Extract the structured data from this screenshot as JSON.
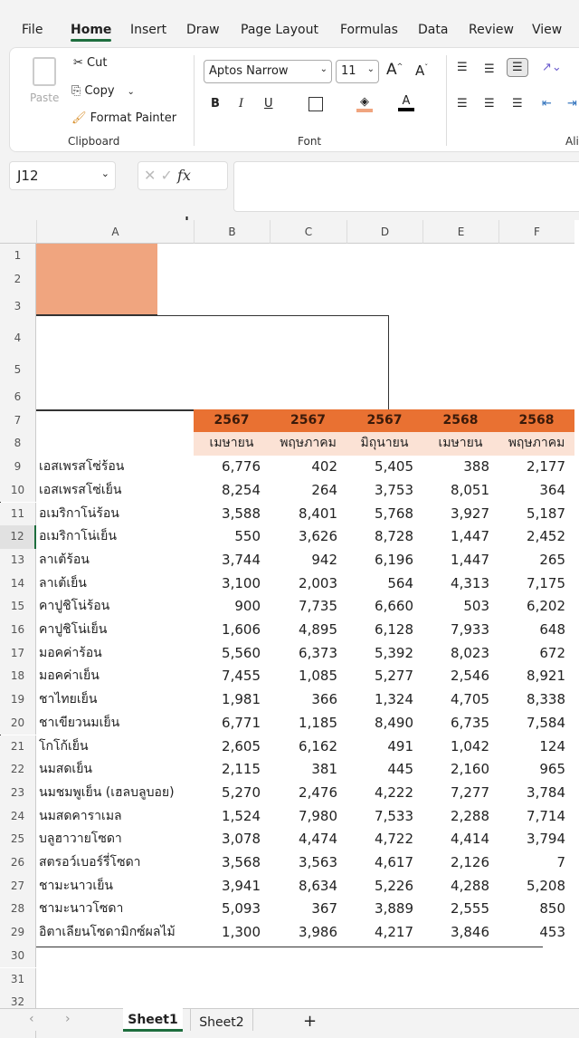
{
  "menu": [
    "File",
    "Home",
    "Insert",
    "Draw",
    "Page Layout",
    "Formulas",
    "Data",
    "Review",
    "View"
  ],
  "ribbon": {
    "paste": "Paste",
    "cut": "Cut",
    "copy": "Copy",
    "format_painter": "Format Painter",
    "clipboard": "Clipboard",
    "font_name": "Aptos Narrow",
    "font_size": "11",
    "font": "Font",
    "alignment": "Ali",
    "bold": "B",
    "italic": "I",
    "underline": "U",
    "font_color": "A",
    "grow": "A",
    "shrink": "A"
  },
  "formula_bar": {
    "name_box": "J12",
    "fx": "fx",
    "value": ""
  },
  "columns": [
    "A",
    "B",
    "C",
    "D",
    "E",
    "F"
  ],
  "colors": {
    "header_fill": "#e97132",
    "month_fill": "#fbe2d5",
    "block_fill": "#f0a57f",
    "selected_row_accent": "#1e6e3e"
  },
  "table": {
    "years": [
      "2567",
      "2567",
      "2567",
      "2568",
      "2568"
    ],
    "months": [
      "เมษายน",
      "พฤษภาคม",
      "มิถุนายน",
      "เมษายน",
      "พฤษภาคม"
    ],
    "rows": [
      {
        "name": "เอสเพรสโซ่ร้อน",
        "v": [
          "6,776",
          "402",
          "5,405",
          "388",
          "2,177"
        ]
      },
      {
        "name": "เอสเพรสโซ่เย็น",
        "v": [
          "8,254",
          "264",
          "3,753",
          "8,051",
          "364"
        ]
      },
      {
        "name": "อเมริกาโน่ร้อน",
        "v": [
          "3,588",
          "8,401",
          "5,768",
          "3,927",
          "5,187"
        ]
      },
      {
        "name": "อเมริกาโน่เย็น",
        "v": [
          "550",
          "3,626",
          "8,728",
          "1,447",
          "2,452"
        ]
      },
      {
        "name": "ลาเต้ร้อน",
        "v": [
          "3,744",
          "942",
          "6,196",
          "1,447",
          "265"
        ]
      },
      {
        "name": "ลาเต้เย็น",
        "v": [
          "3,100",
          "2,003",
          "564",
          "4,313",
          "7,175"
        ]
      },
      {
        "name": "คาปูชิโน่ร้อน",
        "v": [
          "900",
          "7,735",
          "6,660",
          "503",
          "6,202"
        ]
      },
      {
        "name": "คาปูชิโน่เย็น",
        "v": [
          "1,606",
          "4,895",
          "6,128",
          "7,933",
          "648"
        ]
      },
      {
        "name": "มอคค่าร้อน",
        "v": [
          "5,560",
          "6,373",
          "5,392",
          "8,023",
          "672"
        ]
      },
      {
        "name": "มอคค่าเย็น",
        "v": [
          "7,455",
          "1,085",
          "5,277",
          "2,546",
          "8,921"
        ]
      },
      {
        "name": "ชาไทยเย็น",
        "v": [
          "1,981",
          "366",
          "1,324",
          "4,705",
          "8,338"
        ]
      },
      {
        "name": "ชาเขียวนมเย็น",
        "v": [
          "6,771",
          "1,185",
          "8,490",
          "6,735",
          "7,584"
        ]
      },
      {
        "name": "โกโก้เย็น",
        "v": [
          "2,605",
          "6,162",
          "491",
          "1,042",
          "124"
        ]
      },
      {
        "name": "นมสดเย็น",
        "v": [
          "2,115",
          "381",
          "445",
          "2,160",
          "965"
        ]
      },
      {
        "name": "นมชมพูเย็น (เฮลบลูบอย)",
        "v": [
          "5,270",
          "2,476",
          "4,222",
          "7,277",
          "3,784"
        ]
      },
      {
        "name": "นมสดคาราเมล",
        "v": [
          "1,524",
          "7,980",
          "7,533",
          "2,288",
          "7,714"
        ]
      },
      {
        "name": "บลูฮาวายโซดา",
        "v": [
          "3,078",
          "4,474",
          "4,722",
          "4,414",
          "3,794"
        ]
      },
      {
        "name": "สตรอว์เบอร์รี่โซดา",
        "v": [
          "3,568",
          "3,563",
          "4,617",
          "2,126",
          "7"
        ]
      },
      {
        "name": "ชามะนาวเย็น",
        "v": [
          "3,941",
          "8,634",
          "5,226",
          "4,288",
          "5,208"
        ]
      },
      {
        "name": "ชามะนาวโซดา",
        "v": [
          "5,093",
          "367",
          "3,889",
          "2,555",
          "850"
        ]
      },
      {
        "name": "อิตาเลียนโซดามิกซ์ผลไม้",
        "v": [
          "1,300",
          "3,986",
          "4,217",
          "3,846",
          "453"
        ]
      }
    ]
  },
  "sheets": [
    "Sheet1",
    "Sheet2"
  ],
  "active_sheet": "Sheet1"
}
